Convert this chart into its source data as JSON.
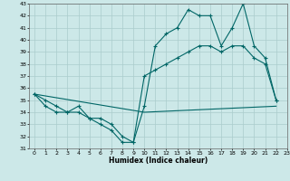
{
  "xlabel": "Humidex (Indice chaleur)",
  "xlim": [
    -0.5,
    23
  ],
  "ylim": [
    31,
    43
  ],
  "yticks": [
    31,
    32,
    33,
    34,
    35,
    36,
    37,
    38,
    39,
    40,
    41,
    42,
    43
  ],
  "xticks": [
    0,
    1,
    2,
    3,
    4,
    5,
    6,
    7,
    8,
    9,
    10,
    11,
    12,
    13,
    14,
    15,
    16,
    17,
    18,
    19,
    20,
    21,
    22,
    23
  ],
  "bg_color": "#cce8e8",
  "grid_color": "#b0d4d4",
  "line_color": "#006666",
  "line1_x": [
    0,
    1,
    2,
    3,
    4,
    5,
    6,
    7,
    8,
    9,
    10,
    11,
    12,
    13,
    14,
    15,
    16,
    17,
    18,
    19,
    20,
    21,
    22
  ],
  "line1_y": [
    35.5,
    35.0,
    34.5,
    34.0,
    34.0,
    33.5,
    33.0,
    32.5,
    31.5,
    31.5,
    34.5,
    39.5,
    40.5,
    41.0,
    42.5,
    42.0,
    42.0,
    39.5,
    41.0,
    43.0,
    39.5,
    38.5,
    35.0
  ],
  "line2_x": [
    0,
    10,
    22
  ],
  "line2_y": [
    35.5,
    34.0,
    34.5
  ],
  "line3_x": [
    0,
    1,
    2,
    3,
    4,
    5,
    6,
    7,
    8,
    9,
    10,
    11,
    12,
    13,
    14,
    15,
    16,
    17,
    18,
    19,
    20,
    21,
    22
  ],
  "line3_y": [
    35.5,
    34.5,
    34.0,
    34.0,
    34.5,
    33.5,
    33.5,
    33.0,
    32.0,
    31.5,
    37.0,
    37.5,
    38.0,
    38.5,
    39.0,
    39.5,
    39.5,
    39.0,
    39.5,
    39.5,
    38.5,
    38.0,
    35.0
  ]
}
